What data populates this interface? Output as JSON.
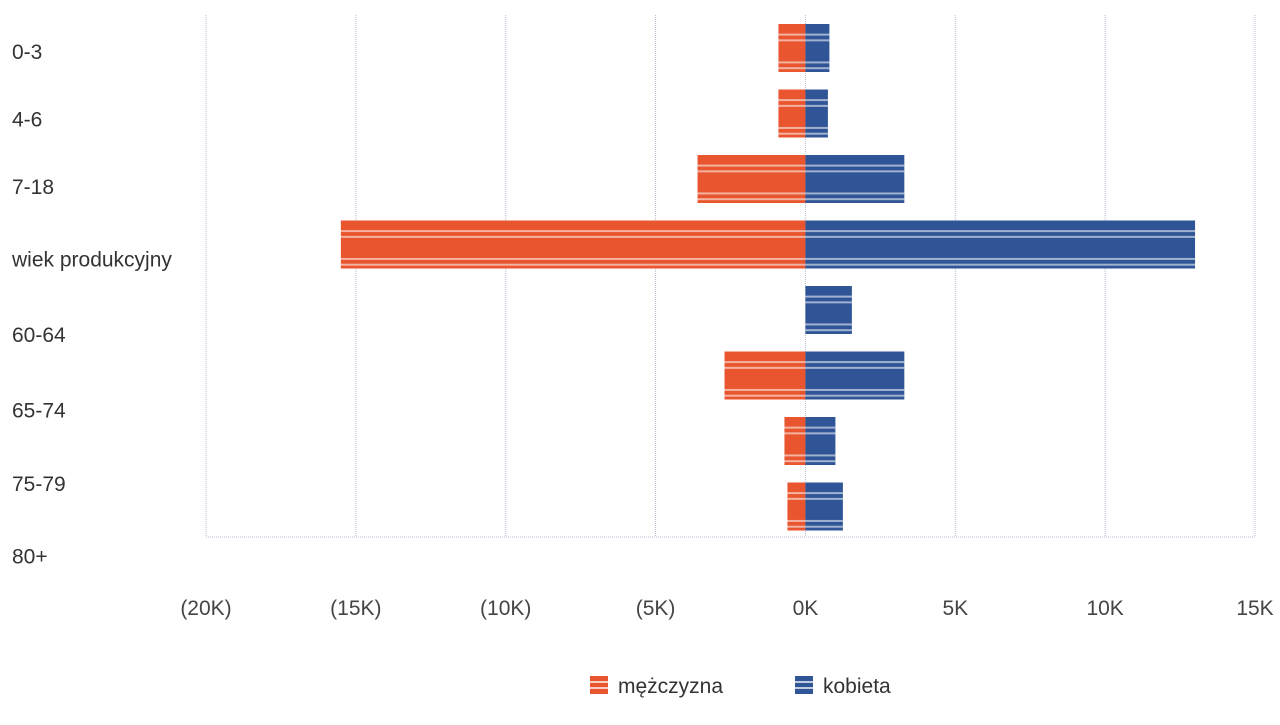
{
  "chart_data": {
    "type": "bar",
    "orientation": "horizontal",
    "stacked": "diverging",
    "categories": [
      "0-3",
      "4-6",
      "7-18",
      "wiek produkcyjny",
      "60-64",
      "65-74",
      "75-79",
      "80+"
    ],
    "series": [
      {
        "name": "mężczyzna",
        "color": "#e8552e",
        "values": [
          -0.9,
          -0.9,
          -3.6,
          -15.5,
          0,
          -2.7,
          -0.7,
          -0.6
        ]
      },
      {
        "name": "kobieta",
        "color": "#2f5597",
        "values": [
          0.8,
          0.75,
          3.3,
          13.0,
          1.55,
          3.3,
          1.0,
          1.25
        ]
      }
    ],
    "xlim": [
      -20,
      15
    ],
    "xticks": [
      -20,
      -15,
      -10,
      -5,
      0,
      5,
      10,
      15
    ],
    "xtick_labels": [
      "(20K)",
      "(15K)",
      "(10K)",
      "(5K)",
      "0K",
      "5K",
      "10K",
      "15K"
    ],
    "grid": true,
    "legend": "bottom-center"
  }
}
